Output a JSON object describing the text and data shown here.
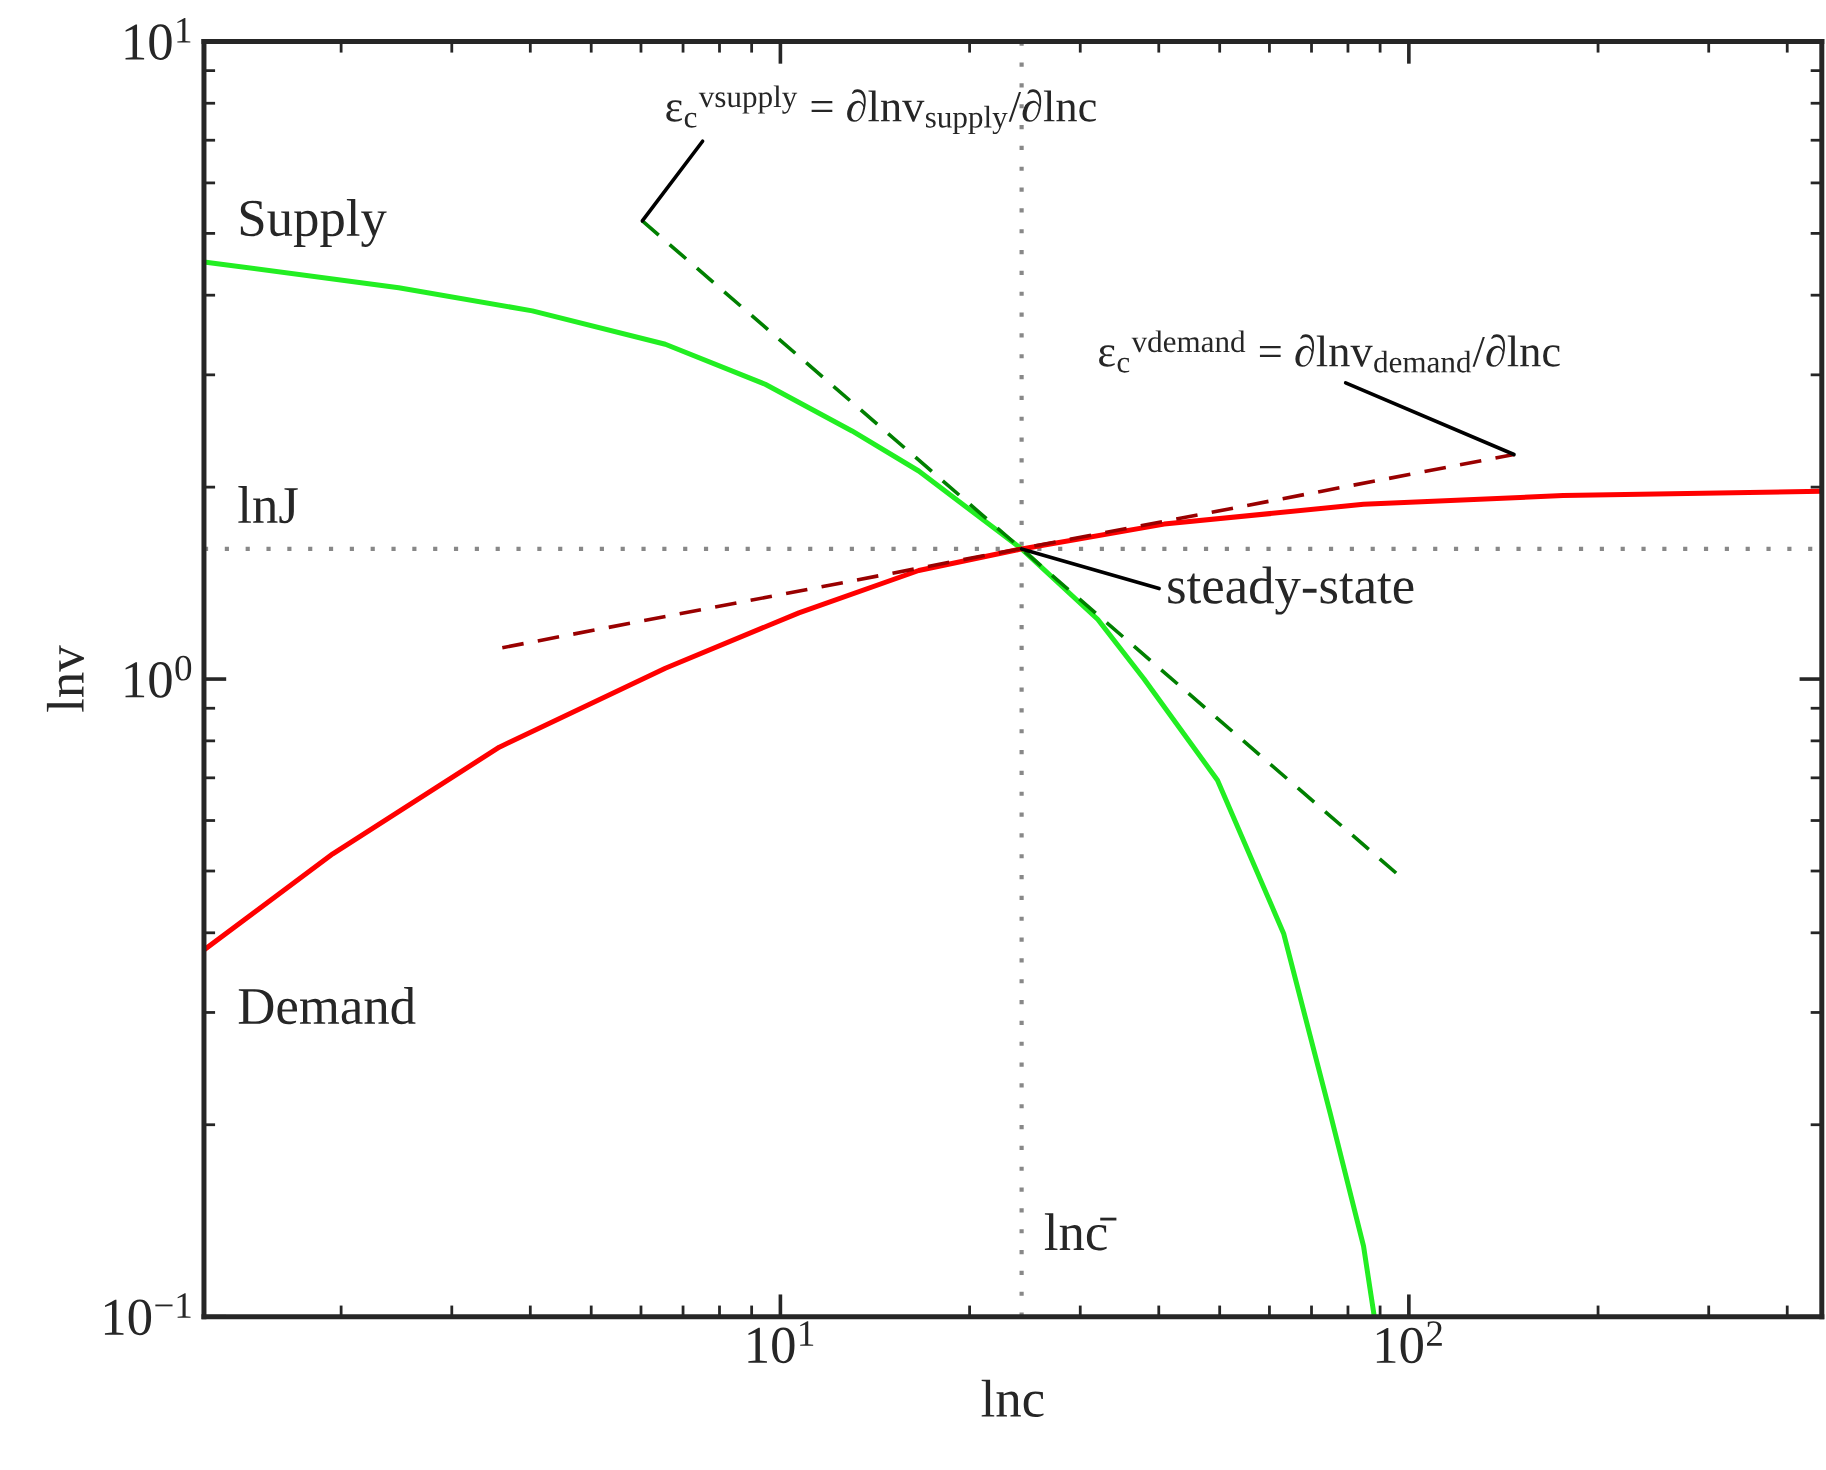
{
  "chart_data": {
    "type": "line",
    "xlabel": "lnc",
    "ylabel": "lnv",
    "log": "xy",
    "xlim": [
      1.21,
      454
    ],
    "ylim": [
      0.1,
      10
    ],
    "xticks": [
      {
        "value": 10,
        "label": "10$^{1}$"
      },
      {
        "value": 100,
        "label": "10$^{2}$"
      }
    ],
    "yticks": [
      {
        "value": 0.1,
        "label": "10$^{−1}$"
      },
      {
        "value": 1,
        "label": "10$^{0}$"
      },
      {
        "value": 10,
        "label": "10$^{1}$"
      }
    ],
    "grid": false,
    "legend": false,
    "series": [
      {
        "name": "Supply",
        "color": "#22ee22",
        "line_style": "solid",
        "x": [
          1.21,
          2.47,
          4.03,
          6.56,
          9.46,
          13.0,
          16.6,
          24.2,
          32.0,
          37.9,
          49.6,
          63.2,
          75.0,
          84.7,
          88.1
        ],
        "values": [
          4.51,
          4.11,
          3.78,
          3.35,
          2.9,
          2.45,
          2.12,
          1.6,
          1.24,
          1.0,
          0.694,
          0.399,
          0.208,
          0.129,
          0.1
        ]
      },
      {
        "name": "Demand",
        "color": "#ff0000",
        "line_style": "solid",
        "x": [
          1.21,
          1.94,
          3.57,
          6.56,
          10.7,
          16.6,
          24.2,
          40.8,
          84.7,
          176,
          454
        ],
        "values": [
          0.376,
          0.532,
          0.782,
          1.04,
          1.27,
          1.48,
          1.6,
          1.75,
          1.88,
          1.94,
          1.97
        ]
      },
      {
        "color": "#008000",
        "line_style": "dashed",
        "x": [
          6.03,
          96.9
        ],
        "values": [
          5.23,
          0.49
        ]
      },
      {
        "color": "#990000",
        "line_style": "dashed",
        "x": [
          3.61,
          147
        ],
        "values": [
          1.12,
          2.25
        ]
      }
    ],
    "ref_lines": [
      {
        "axis": "y",
        "value": 1.6,
        "label": "lnJ",
        "color": "#888888",
        "line_style": "dotted"
      },
      {
        "axis": "x",
        "value": 24.2,
        "label": "lnc̄",
        "color": "#888888",
        "line_style": "dotted"
      }
    ],
    "annotations": [
      {
        "text": "steady-state",
        "x": 24.2,
        "y": 1.6
      },
      {
        "text": "ε$_{c}$$^{vsupply}$ = ∂lnv$_{supply}$/∂lnc",
        "x": 6.03,
        "y": 5.23
      },
      {
        "text": "ε$_{c}$$^{vdemand}$ = ∂lnv$_{demand}$/∂lnc",
        "x": 147,
        "y": 2.25
      }
    ]
  }
}
